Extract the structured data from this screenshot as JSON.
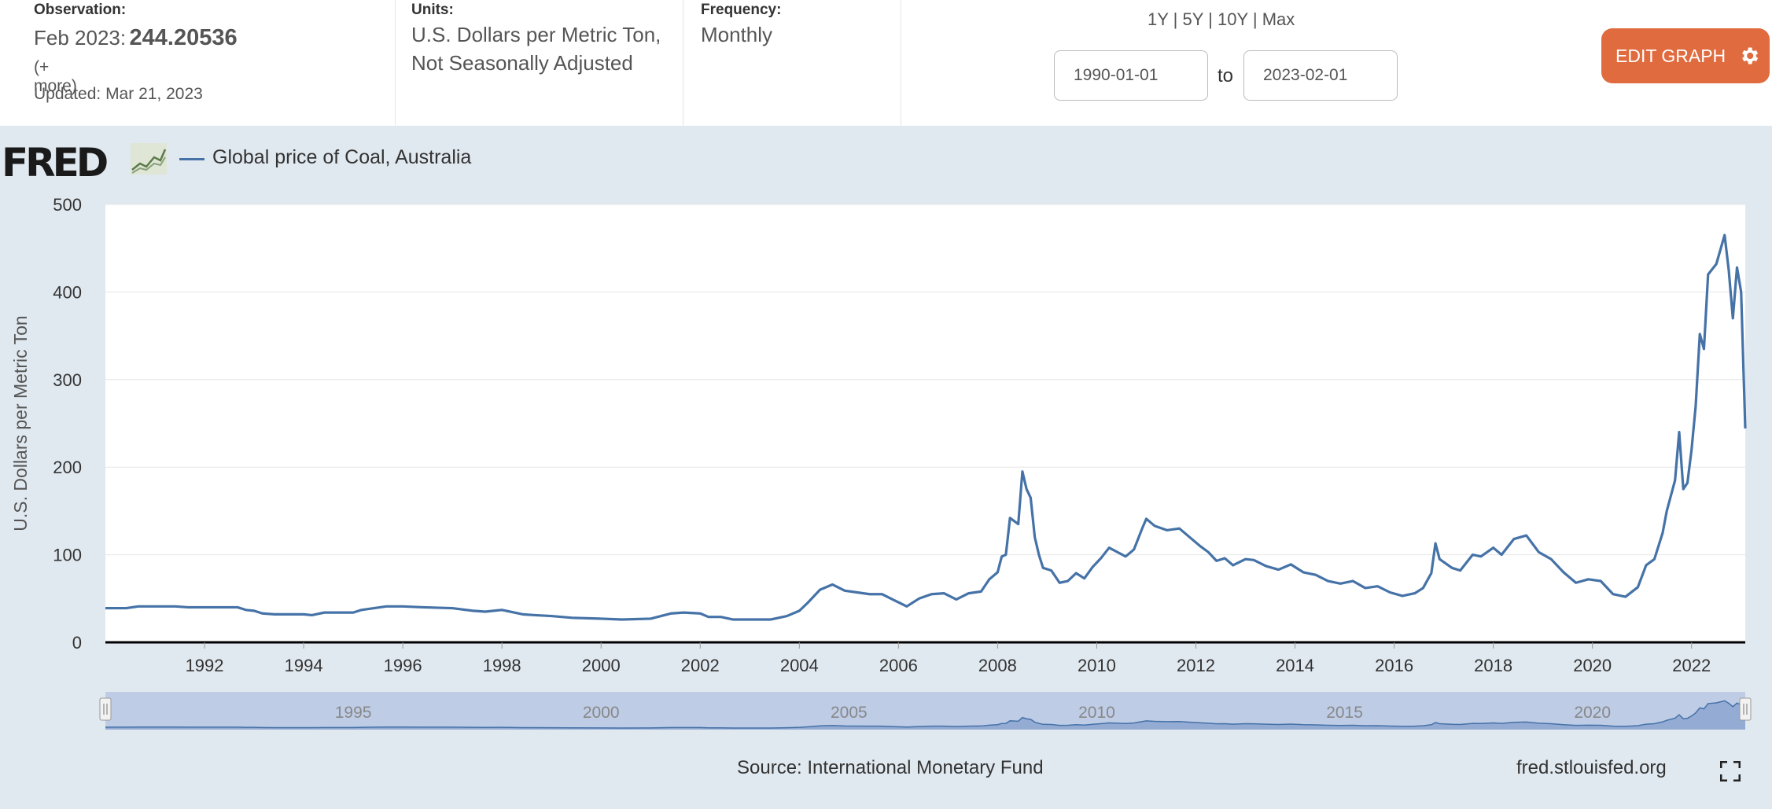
{
  "header": {
    "observation": {
      "label": "Observation:",
      "period": "Feb 2023:",
      "value": "244.20536",
      "more": "(+ more)",
      "updated": "Updated: Mar 21, 2023"
    },
    "units": {
      "label": "Units:",
      "line1": "U.S. Dollars per Metric Ton,",
      "line2": "Not Seasonally Adjusted"
    },
    "frequency": {
      "label": "Frequency:",
      "value": "Monthly"
    },
    "ranges": [
      "1Y",
      "5Y",
      "10Y",
      "Max"
    ],
    "range_separator": "|",
    "date_from": "1990-01-01",
    "date_to": "2023-02-01",
    "to_label": "to",
    "edit_button": "EDIT GRAPH"
  },
  "logo_text": "FRED",
  "footer": {
    "source": "Source: International Monetary Fund",
    "url": "fred.stlouisfed.org"
  },
  "icons": {
    "gear": "gear-icon",
    "fullscreen": "fullscreen-icon",
    "graph": "fred-graph-icon"
  },
  "colors": {
    "series": "#4572a7",
    "edit_button": "#e06b3f",
    "background": "#e1e9f0",
    "navigator_fill": "#8aa3d0",
    "navigator_mask": "#b7c7e4"
  },
  "chart_data": {
    "type": "line",
    "title": "",
    "series": [
      {
        "name": "Global price of Coal, Australia",
        "points": [
          [
            "1990-01",
            39
          ],
          [
            "1990-06",
            39
          ],
          [
            "1990-09",
            41
          ],
          [
            "1991-06",
            41
          ],
          [
            "1991-09",
            40
          ],
          [
            "1992-06",
            40
          ],
          [
            "1992-09",
            40
          ],
          [
            "1992-11",
            37
          ],
          [
            "1993-01",
            36
          ],
          [
            "1993-03",
            33
          ],
          [
            "1993-06",
            32
          ],
          [
            "1994-01",
            32
          ],
          [
            "1994-03",
            31
          ],
          [
            "1994-06",
            34
          ],
          [
            "1995-01",
            34
          ],
          [
            "1995-03",
            37
          ],
          [
            "1995-06",
            39
          ],
          [
            "1995-09",
            41
          ],
          [
            "1996-01",
            41
          ],
          [
            "1996-06",
            40
          ],
          [
            "1997-01",
            39
          ],
          [
            "1997-06",
            36
          ],
          [
            "1997-09",
            35
          ],
          [
            "1998-01",
            37
          ],
          [
            "1998-06",
            32
          ],
          [
            "1998-09",
            31
          ],
          [
            "1999-01",
            30
          ],
          [
            "1999-06",
            28
          ],
          [
            "2000-01",
            27
          ],
          [
            "2000-06",
            26
          ],
          [
            "2001-01",
            27
          ],
          [
            "2001-06",
            33
          ],
          [
            "2001-09",
            34
          ],
          [
            "2002-01",
            33
          ],
          [
            "2002-03",
            29
          ],
          [
            "2002-06",
            29
          ],
          [
            "2002-09",
            26
          ],
          [
            "2003-01",
            26
          ],
          [
            "2003-06",
            26
          ],
          [
            "2003-10",
            30
          ],
          [
            "2004-01",
            36
          ],
          [
            "2004-03",
            45
          ],
          [
            "2004-06",
            60
          ],
          [
            "2004-09",
            66
          ],
          [
            "2004-12",
            59
          ],
          [
            "2005-03",
            57
          ],
          [
            "2005-06",
            55
          ],
          [
            "2005-09",
            55
          ],
          [
            "2005-12",
            48
          ],
          [
            "2006-03",
            41
          ],
          [
            "2006-06",
            50
          ],
          [
            "2006-09",
            55
          ],
          [
            "2006-12",
            56
          ],
          [
            "2007-03",
            49
          ],
          [
            "2007-06",
            56
          ],
          [
            "2007-09",
            58
          ],
          [
            "2007-11",
            72
          ],
          [
            "2008-01",
            80
          ],
          [
            "2008-02",
            98
          ],
          [
            "2008-03",
            100
          ],
          [
            "2008-04",
            142
          ],
          [
            "2008-06",
            135
          ],
          [
            "2008-07",
            195
          ],
          [
            "2008-08",
            175
          ],
          [
            "2008-09",
            165
          ],
          [
            "2008-10",
            120
          ],
          [
            "2008-11",
            100
          ],
          [
            "2008-12",
            85
          ],
          [
            "2009-02",
            82
          ],
          [
            "2009-04",
            68
          ],
          [
            "2009-06",
            70
          ],
          [
            "2009-08",
            79
          ],
          [
            "2009-10",
            73
          ],
          [
            "2009-12",
            86
          ],
          [
            "2010-02",
            96
          ],
          [
            "2010-04",
            108
          ],
          [
            "2010-06",
            103
          ],
          [
            "2010-08",
            98
          ],
          [
            "2010-10",
            106
          ],
          [
            "2010-12",
            130
          ],
          [
            "2011-01",
            141
          ],
          [
            "2011-03",
            133
          ],
          [
            "2011-06",
            128
          ],
          [
            "2011-09",
            130
          ],
          [
            "2011-12",
            118
          ],
          [
            "2012-02",
            110
          ],
          [
            "2012-04",
            103
          ],
          [
            "2012-06",
            93
          ],
          [
            "2012-08",
            96
          ],
          [
            "2012-10",
            88
          ],
          [
            "2013-01",
            95
          ],
          [
            "2013-03",
            94
          ],
          [
            "2013-06",
            87
          ],
          [
            "2013-09",
            83
          ],
          [
            "2013-12",
            89
          ],
          [
            "2014-03",
            80
          ],
          [
            "2014-06",
            77
          ],
          [
            "2014-09",
            70
          ],
          [
            "2014-12",
            67
          ],
          [
            "2015-03",
            70
          ],
          [
            "2015-06",
            62
          ],
          [
            "2015-09",
            64
          ],
          [
            "2015-12",
            57
          ],
          [
            "2016-03",
            53
          ],
          [
            "2016-06",
            56
          ],
          [
            "2016-08",
            62
          ],
          [
            "2016-10",
            79
          ],
          [
            "2016-11",
            113
          ],
          [
            "2016-12",
            95
          ],
          [
            "2017-03",
            85
          ],
          [
            "2017-05",
            82
          ],
          [
            "2017-08",
            100
          ],
          [
            "2017-10",
            98
          ],
          [
            "2018-01",
            108
          ],
          [
            "2018-03",
            100
          ],
          [
            "2018-06",
            118
          ],
          [
            "2018-09",
            122
          ],
          [
            "2018-12",
            103
          ],
          [
            "2019-03",
            95
          ],
          [
            "2019-06",
            80
          ],
          [
            "2019-09",
            68
          ],
          [
            "2019-12",
            72
          ],
          [
            "2020-03",
            70
          ],
          [
            "2020-06",
            55
          ],
          [
            "2020-09",
            52
          ],
          [
            "2020-12",
            63
          ],
          [
            "2021-02",
            88
          ],
          [
            "2021-04",
            95
          ],
          [
            "2021-06",
            125
          ],
          [
            "2021-07",
            150
          ],
          [
            "2021-09",
            185
          ],
          [
            "2021-10",
            240
          ],
          [
            "2021-11",
            175
          ],
          [
            "2021-12",
            182
          ],
          [
            "2022-01",
            220
          ],
          [
            "2022-02",
            270
          ],
          [
            "2022-03",
            352
          ],
          [
            "2022-04",
            335
          ],
          [
            "2022-05",
            420
          ],
          [
            "2022-07",
            432
          ],
          [
            "2022-09",
            465
          ],
          [
            "2022-10",
            425
          ],
          [
            "2022-11",
            370
          ],
          [
            "2022-12",
            428
          ],
          [
            "2023-01",
            400
          ],
          [
            "2023-02",
            244.20536
          ]
        ]
      }
    ],
    "xlabel": "",
    "ylabel": "U.S. Dollars per Metric Ton",
    "xlim": [
      "1990-01",
      "2023-02"
    ],
    "ylim": [
      0,
      500
    ],
    "yticks": [
      0,
      100,
      200,
      300,
      400,
      500
    ],
    "xticks": [
      "1992",
      "1994",
      "1996",
      "1998",
      "2000",
      "2002",
      "2004",
      "2006",
      "2008",
      "2010",
      "2012",
      "2014",
      "2016",
      "2018",
      "2020",
      "2022"
    ],
    "navigator_labels": [
      "1995",
      "2000",
      "2005",
      "2010",
      "2015",
      "2020"
    ],
    "grid": true,
    "legend": "top-left"
  }
}
